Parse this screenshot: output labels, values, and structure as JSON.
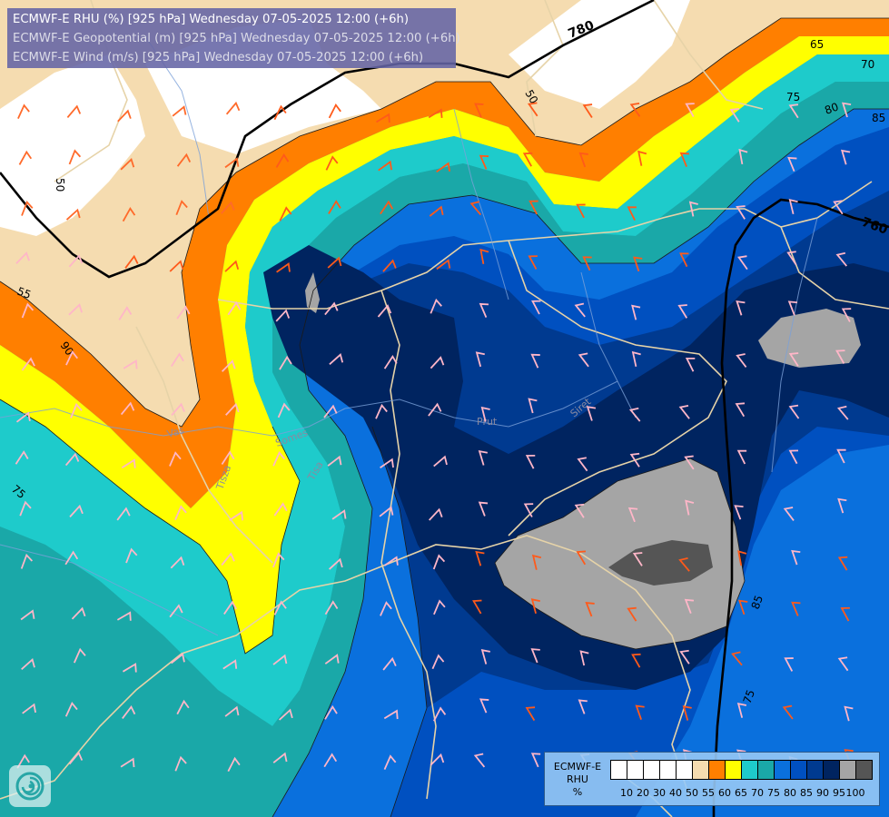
{
  "header": {
    "line1": "ECMWF-E RHU (%) [925 hPa] Wednesday 07-05-2025 12:00 (+6h)",
    "line2": "ECMWF-E Geopotential (m) [925 hPa] Wednesday 07-05-2025 12:00 (+6h)",
    "line3": "ECMWF-E Wind (m/s) [925 hPa] Wednesday 07-05-2025 12:00 (+6h)"
  },
  "legend": {
    "title_line1": "ECMWF-E",
    "title_line2": "RHU",
    "title_line3": "%",
    "colors": [
      "#ffffff",
      "#ffffff",
      "#ffffff",
      "#ffffff",
      "#ffffff",
      "#f5dcb0",
      "#ff7f00",
      "#ffff00",
      "#1ecbcb",
      "#1aa8a8",
      "#0a70dd",
      "#0050c0",
      "#003a90",
      "#002460",
      "#a5a5a5",
      "#555555"
    ],
    "ticks": [
      "10",
      "20",
      "30",
      "40",
      "50",
      "55",
      "60",
      "65",
      "70",
      "75",
      "80",
      "85",
      "90",
      "95",
      "100"
    ]
  },
  "contour_labels": {
    "geo_780": "780",
    "geo_760": "760",
    "rhu_50_a": "50",
    "rhu_50_b": "50",
    "rhu_55": "55",
    "rhu_65": "65",
    "rhu_70": "70",
    "rhu_75_a": "75",
    "rhu_75_b": "75",
    "rhu_80": "80",
    "rhu_85_a": "85",
    "rhu_85_b": "85",
    "rhu_90": "90",
    "rhu_75_c": "75"
  },
  "river_labels": {
    "vas": "Vas",
    "tisza": "Tisza",
    "somes": "Somes",
    "tisa": "Tisa",
    "prut": "Prut",
    "siret": "Siret"
  }
}
